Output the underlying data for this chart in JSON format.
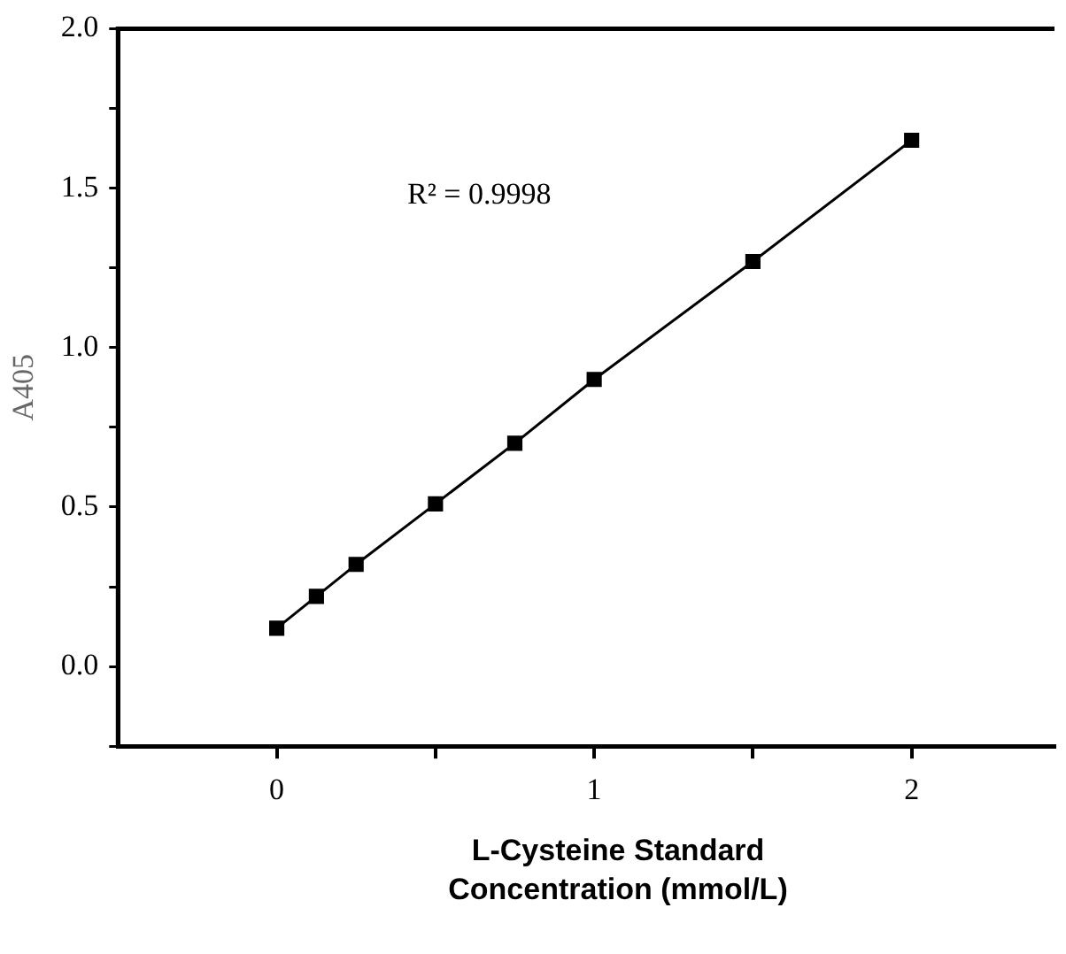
{
  "chart_data": {
    "type": "line",
    "xlabel": "L-Cysteine Standard Concentration (mmol/L)",
    "ylabel": "A405",
    "annotations": [
      "R² = 0.9998"
    ],
    "x": [
      0,
      0.125,
      0.25,
      0.5,
      0.75,
      1,
      1.5,
      2
    ],
    "series": [
      {
        "color": "#000000",
        "values": [
          0.12,
          0.22,
          0.32,
          0.51,
          0.7,
          0.9,
          1.27,
          1.65
        ]
      }
    ],
    "xlim": [
      -0.5,
      2.45
    ],
    "xticks": [
      0,
      {
        "value": 0.5,
        "label": null
      },
      1,
      {
        "value": 1.5,
        "label": null
      },
      2
    ],
    "ylim": [
      -0.25,
      2.0
    ],
    "yticks": [
      {
        "value": -0.25,
        "label": null
      },
      {
        "value": 0,
        "label": "0.0"
      },
      {
        "value": 0.25,
        "label": null
      },
      {
        "value": 0.5,
        "label": "0.5"
      },
      {
        "value": 0.75,
        "label": null
      },
      {
        "value": 1,
        "label": "1.0"
      },
      {
        "value": 1.25,
        "label": null
      },
      {
        "value": 1.5,
        "label": "1.5"
      },
      {
        "value": 1.75,
        "label": null
      },
      {
        "value": 2,
        "label": "2.0"
      }
    ],
    "grid": false,
    "legend": false,
    "marker": "square",
    "line_style": "solid"
  }
}
